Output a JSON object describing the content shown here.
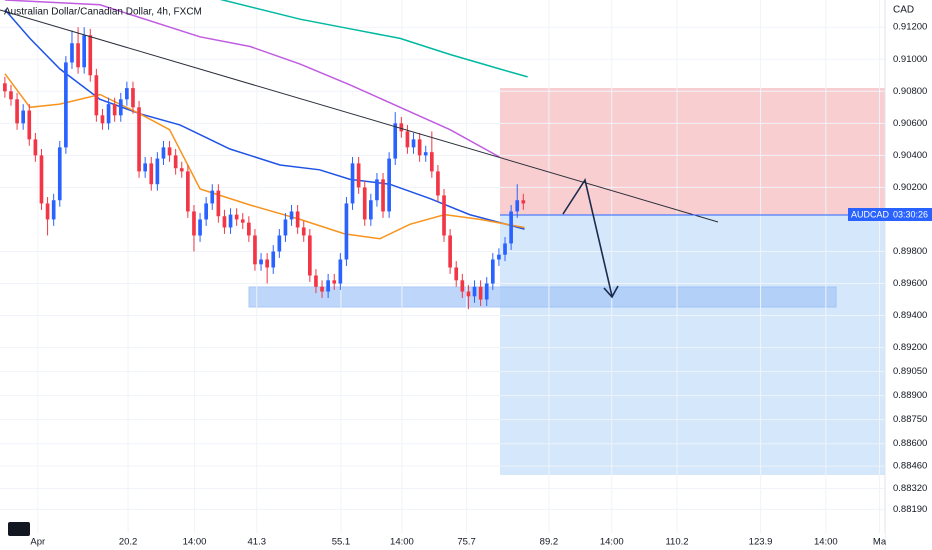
{
  "chart_data": {
    "type": "candlestick",
    "title": "Australian Dollar/Canadian Dollar, 4h, FXCM",
    "y_axis_label": "CAD",
    "symbol_label": "AUDCAD",
    "countdown": "03:30:26",
    "up_color": "#2962ff",
    "down_color": "#f23645",
    "xlim": [
      -0.8,
      144.3
    ],
    "xticks": [
      {
        "value": 5.4,
        "label": "Apr"
      },
      20.2,
      {
        "value": 31.1,
        "label": "14:00"
      },
      41.3,
      55.1,
      {
        "value": 65.1,
        "label": "14:00"
      },
      75.7,
      89.2,
      {
        "value": 99.5,
        "label": "14:00"
      },
      110.2,
      123.9,
      {
        "value": 134.6,
        "label": "14:00"
      },
      {
        "value": 143.4,
        "label": "Ma"
      }
    ],
    "ylim": [
      0.8803,
      0.9137
    ],
    "yticks": [
      {
        "value": 0.912,
        "label": "0.91200"
      },
      {
        "value": 0.91,
        "label": "0.91000"
      },
      {
        "value": 0.908,
        "label": "0.90800"
      },
      {
        "value": 0.906,
        "label": "0.90600"
      },
      {
        "value": 0.904,
        "label": "0.90400"
      },
      {
        "value": 0.902,
        "label": "0.90200"
      },
      {
        "value": 0.898,
        "label": "0.89800"
      },
      {
        "value": 0.896,
        "label": "0.89600"
      },
      {
        "value": 0.894,
        "label": "0.89400"
      },
      {
        "value": 0.892,
        "label": "0.89200"
      },
      {
        "value": 0.8905,
        "label": "0.89050"
      },
      {
        "value": 0.889,
        "label": "0.88900"
      },
      {
        "value": 0.8875,
        "label": "0.88750"
      },
      {
        "value": 0.886,
        "label": "0.88600"
      },
      {
        "value": 0.8846,
        "label": "0.88460"
      },
      {
        "value": 0.8832,
        "label": "0.88320"
      },
      {
        "value": 0.8819,
        "label": "0.88190"
      }
    ],
    "open": [
      0.9085,
      0.908,
      0.9075,
      0.906,
      0.9068,
      0.905,
      0.904,
      0.901,
      0.9,
      0.9012,
      0.9045,
      0.9098,
      0.911,
      0.9095,
      0.9115,
      0.909,
      0.9065,
      0.906,
      0.9072,
      0.9065,
      0.9075,
      0.9082,
      0.907,
      0.903,
      0.9035,
      0.9022,
      0.9038,
      0.9045,
      0.904,
      0.9032,
      0.903,
      0.9005,
      0.899,
      0.9,
      0.901,
      0.9018,
      0.9002,
      0.8995,
      0.9003,
      0.9,
      0.8998,
      0.899,
      0.8972,
      0.8975,
      0.897,
      0.898,
      0.899,
      0.9,
      0.9005,
      0.8995,
      0.899,
      0.8965,
      0.8958,
      0.8955,
      0.8962,
      0.896,
      0.8975,
      0.901,
      0.9035,
      0.902,
      0.9,
      0.9012,
      0.9025,
      0.9005,
      0.9038,
      0.906,
      0.9055,
      0.9045,
      0.905,
      0.904,
      0.9042,
      0.903,
      0.9015,
      0.899,
      0.897,
      0.8962,
      0.8955,
      0.8952,
      0.8958,
      0.895,
      0.896,
      0.8975,
      0.8978,
      0.8985,
      0.9005,
      0.9012
    ],
    "high": [
      0.9089,
      0.9084,
      0.9079,
      0.9072,
      0.9072,
      0.9054,
      0.9044,
      0.9014,
      0.9016,
      0.9049,
      0.9102,
      0.9118,
      0.912,
      0.912,
      0.9119,
      0.9094,
      0.9069,
      0.9076,
      0.9076,
      0.9079,
      0.9086,
      0.9086,
      0.9074,
      0.9039,
      0.9039,
      0.9042,
      0.9049,
      0.9049,
      0.9044,
      0.9036,
      0.9034,
      0.9009,
      0.9004,
      0.9014,
      0.9022,
      0.9022,
      0.9006,
      0.9007,
      0.9007,
      0.9004,
      0.9002,
      0.8994,
      0.8979,
      0.8979,
      0.8984,
      0.8994,
      0.9004,
      0.9009,
      0.9009,
      0.8999,
      0.8994,
      0.8969,
      0.8962,
      0.8966,
      0.8966,
      0.8979,
      0.9014,
      0.9039,
      0.9039,
      0.9024,
      0.9016,
      0.9029,
      0.9029,
      0.9042,
      0.9067,
      0.9064,
      0.9059,
      0.9054,
      0.9054,
      0.9046,
      0.9055,
      0.9034,
      0.9019,
      0.8994,
      0.8974,
      0.8966,
      0.8959,
      0.8962,
      0.8962,
      0.8964,
      0.8979,
      0.8982,
      0.8989,
      0.9009,
      0.9022,
      0.9016
    ],
    "low": [
      0.9076,
      0.9071,
      0.9056,
      0.9056,
      0.9046,
      0.9036,
      0.9006,
      0.899,
      0.8996,
      0.9008,
      0.9041,
      0.9094,
      0.9091,
      0.9091,
      0.9086,
      0.9061,
      0.9056,
      0.9056,
      0.9061,
      0.9061,
      0.9071,
      0.9066,
      0.9026,
      0.9026,
      0.9018,
      0.9018,
      0.9034,
      0.9036,
      0.9028,
      0.9026,
      0.9001,
      0.898,
      0.8986,
      0.8996,
      0.9006,
      0.8998,
      0.8991,
      0.8991,
      0.8996,
      0.8994,
      0.8986,
      0.8968,
      0.8968,
      0.896,
      0.8966,
      0.8976,
      0.8986,
      0.8996,
      0.8991,
      0.8986,
      0.8961,
      0.8954,
      0.8951,
      0.8951,
      0.8956,
      0.8956,
      0.8971,
      0.9006,
      0.9016,
      0.8996,
      0.8996,
      0.9008,
      0.9001,
      0.9001,
      0.9034,
      0.9051,
      0.9041,
      0.9041,
      0.9036,
      0.9036,
      0.9026,
      0.9011,
      0.8986,
      0.8966,
      0.8958,
      0.8951,
      0.8944,
      0.8948,
      0.8946,
      0.8946,
      0.8956,
      0.8971,
      0.8974,
      0.8981,
      0.9001,
      0.9006
    ],
    "close": [
      0.908,
      0.9075,
      0.906,
      0.9068,
      0.905,
      0.904,
      0.901,
      0.9,
      0.9012,
      0.9045,
      0.9098,
      0.911,
      0.9095,
      0.9115,
      0.909,
      0.9065,
      0.906,
      0.9072,
      0.9065,
      0.9075,
      0.9082,
      0.907,
      0.903,
      0.9035,
      0.9022,
      0.9038,
      0.9045,
      0.904,
      0.9032,
      0.903,
      0.9005,
      0.899,
      0.9,
      0.901,
      0.9018,
      0.9002,
      0.8995,
      0.9003,
      0.9,
      0.8998,
      0.899,
      0.8972,
      0.8975,
      0.897,
      0.898,
      0.899,
      0.9,
      0.9005,
      0.8995,
      0.899,
      0.8965,
      0.8958,
      0.8955,
      0.8962,
      0.896,
      0.8975,
      0.901,
      0.9035,
      0.902,
      0.9,
      0.9012,
      0.9025,
      0.9005,
      0.9038,
      0.906,
      0.9055,
      0.9045,
      0.905,
      0.904,
      0.9042,
      0.903,
      0.9015,
      0.899,
      0.897,
      0.8962,
      0.8955,
      0.8952,
      0.8958,
      0.895,
      0.896,
      0.8975,
      0.8978,
      0.8985,
      0.9005,
      0.9012,
      0.901
    ],
    "overlays": [
      {
        "color": "#00b9a0",
        "x": [
          35.2,
          48.4,
          56.6,
          64.8,
          73.0,
          81.1,
          85.7
        ],
        "values": [
          0.91375,
          0.9125,
          0.9119,
          0.9113,
          0.9103,
          0.9094,
          0.9089
        ]
      },
      {
        "color": "#c05ce0",
        "x": [
          0,
          15.6,
          31.97,
          40.2,
          48.4,
          56.6,
          64.8,
          73.0,
          81.1
        ],
        "values": [
          0.9137,
          0.9134,
          0.9114,
          0.9108,
          0.9097,
          0.9084,
          0.907,
          0.9056,
          0.9039
        ]
      },
      {
        "color": "#1e53e5",
        "x": [
          0,
          4.1,
          9.0,
          15.6,
          22.1,
          28.7,
          36.9,
          45.1,
          51.6,
          56.6,
          63.1,
          69.7,
          76.2,
          85.2
        ],
        "values": [
          0.9131,
          0.9113,
          0.9094,
          0.9075,
          0.9066,
          0.9059,
          0.9044,
          0.9034,
          0.9031,
          0.9025,
          0.9022,
          0.9013,
          0.9003,
          0.8994
        ]
      },
      {
        "color": "#f7941d",
        "x": [
          0,
          4.1,
          9.0,
          15.6,
          22.1,
          27.0,
          32.0,
          40.2,
          48.4,
          55.7,
          61.5,
          66.4,
          72.1,
          77.9,
          85.2
        ],
        "values": [
          0.9091,
          0.907,
          0.9072,
          0.9078,
          0.9066,
          0.9056,
          0.9019,
          0.9009,
          0.9,
          0.8991,
          0.8988,
          0.8997,
          0.9003,
          0.9,
          0.8995
        ]
      }
    ]
  }
}
